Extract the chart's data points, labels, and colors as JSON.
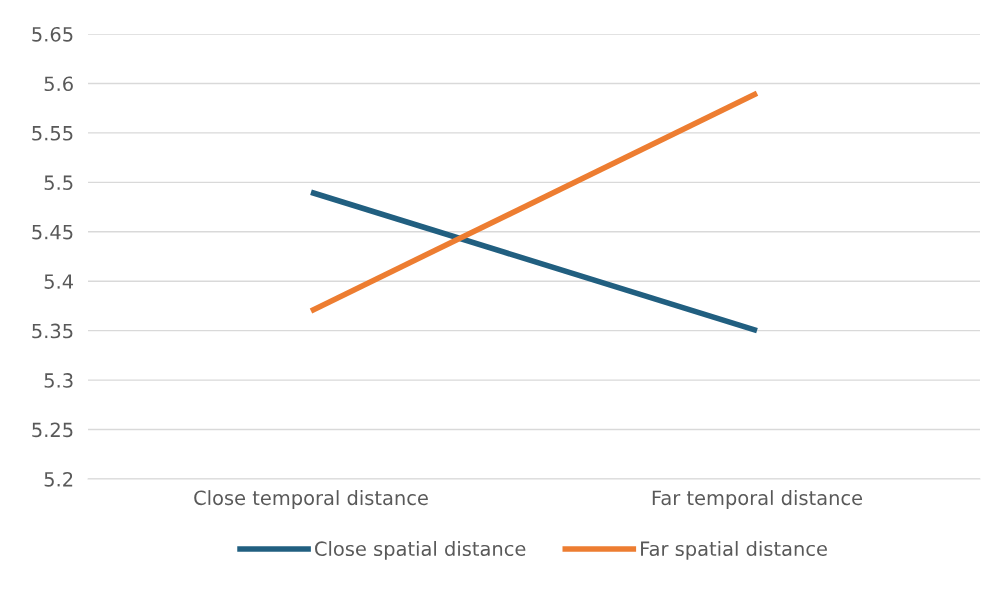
{
  "chart_data": {
    "type": "line",
    "categories": [
      "Close temporal distance",
      "Far temporal distance"
    ],
    "series": [
      {
        "name": "Close spatial distance",
        "color": "#215f80",
        "values": [
          5.49,
          5.35
        ]
      },
      {
        "name": "Far spatial distance",
        "color": "#ed7d31",
        "values": [
          5.37,
          5.59
        ]
      }
    ],
    "ylim": [
      5.2,
      5.65
    ],
    "yticks": [
      5.2,
      5.25,
      5.3,
      5.35,
      5.4,
      5.45,
      5.5,
      5.55,
      5.6,
      5.65
    ],
    "grid": "y",
    "legend": "bottom",
    "marker": "none",
    "line_style": "solid"
  }
}
